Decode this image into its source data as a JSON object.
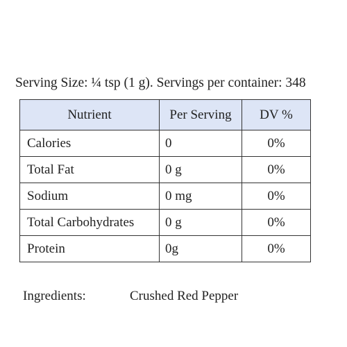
{
  "header": {
    "caption": "Serving Size: ¼ tsp (1 g). Servings per container: 348"
  },
  "table": {
    "columns": [
      "Nutrient",
      "Per Serving",
      "DV %"
    ],
    "rows": [
      [
        "Calories",
        "0",
        "0%"
      ],
      [
        "Total Fat",
        "0 g",
        "0%"
      ],
      [
        "Sodium",
        "0 mg",
        "0%"
      ],
      [
        "Total Carbohydrates",
        "0 g",
        "0%"
      ],
      [
        "Protein",
        "0g",
        "0%"
      ]
    ]
  },
  "ingredients": {
    "label": "Ingredients:",
    "value": "Crushed Red Pepper"
  }
}
